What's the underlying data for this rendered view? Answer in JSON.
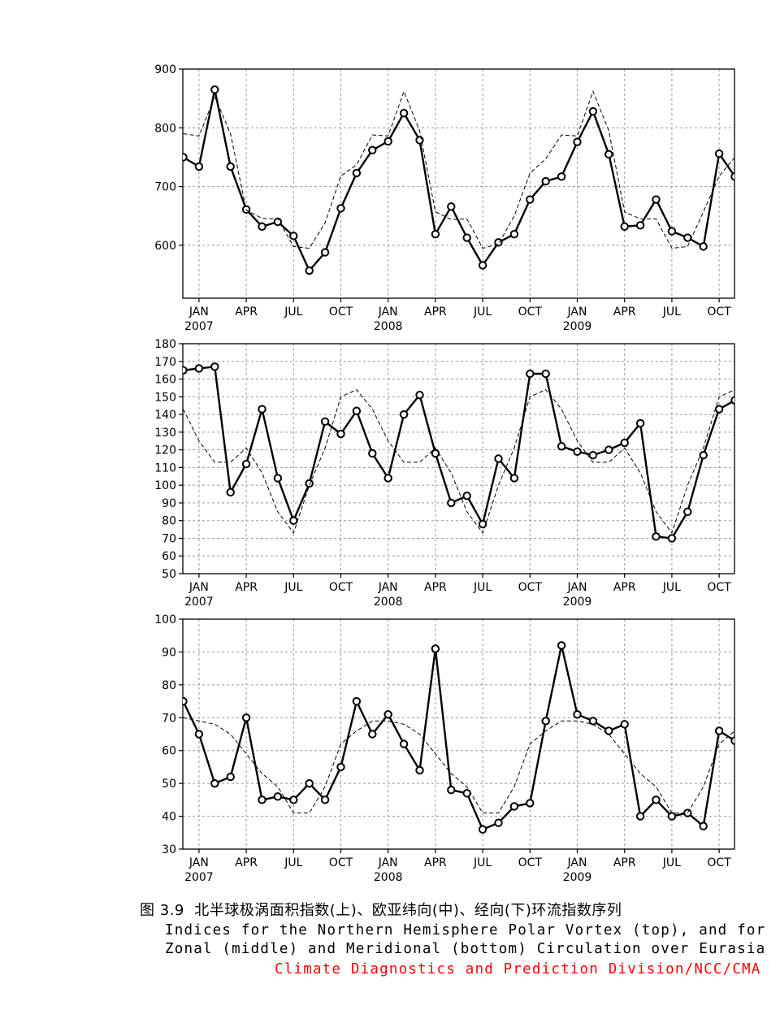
{
  "chart_data": [
    {
      "type": "line",
      "id": "polar-vortex",
      "title": "",
      "x": [
        "2006-12",
        "2007-01",
        "2007-02",
        "2007-03",
        "2007-04",
        "2007-05",
        "2007-06",
        "2007-07",
        "2007-08",
        "2007-09",
        "2007-10",
        "2007-11",
        "2007-12",
        "2008-01",
        "2008-02",
        "2008-03",
        "2008-04",
        "2008-05",
        "2008-06",
        "2008-07",
        "2008-08",
        "2008-09",
        "2008-10",
        "2008-11",
        "2008-12",
        "2009-01",
        "2009-02",
        "2009-03",
        "2009-04",
        "2009-05",
        "2009-06",
        "2009-07",
        "2009-08",
        "2009-09",
        "2009-10",
        "2009-11"
      ],
      "series": [
        {
          "name": "",
          "style": "solid-circles",
          "values": [
            750,
            734,
            865,
            734,
            661,
            632,
            640,
            616,
            557,
            588,
            663,
            723,
            762,
            777,
            825,
            779,
            619,
            666,
            613,
            566,
            605,
            619,
            678,
            709,
            717,
            776,
            828,
            755,
            632,
            634,
            678,
            624,
            613,
            598,
            756,
            717
          ]
        },
        {
          "name": "",
          "style": "dashed",
          "values": [
            790,
            786,
            853,
            790,
            660,
            646,
            645,
            598,
            595,
            638,
            718,
            737,
            788,
            786,
            862,
            795,
            657,
            644,
            645,
            595,
            602,
            650,
            723,
            747,
            788,
            786,
            862,
            795,
            657,
            645,
            645,
            595,
            598,
            657,
            718,
            750
          ]
        }
      ],
      "ylim": [
        510,
        900
      ],
      "yticks": [
        600,
        700,
        800,
        900
      ],
      "xticks": [
        {
          "date": "2007-01",
          "label": "JAN",
          "year": "2007"
        },
        {
          "date": "2007-04",
          "label": "APR",
          "year": ""
        },
        {
          "date": "2007-07",
          "label": "JUL",
          "year": ""
        },
        {
          "date": "2007-10",
          "label": "OCT",
          "year": ""
        },
        {
          "date": "2008-01",
          "label": "JAN",
          "year": "2008"
        },
        {
          "date": "2008-04",
          "label": "APR",
          "year": ""
        },
        {
          "date": "2008-07",
          "label": "JUL",
          "year": ""
        },
        {
          "date": "2008-10",
          "label": "OCT",
          "year": ""
        },
        {
          "date": "2009-01",
          "label": "JAN",
          "year": "2009"
        },
        {
          "date": "2009-04",
          "label": "APR",
          "year": ""
        },
        {
          "date": "2009-07",
          "label": "JUL",
          "year": ""
        },
        {
          "date": "2009-10",
          "label": "OCT",
          "year": ""
        }
      ],
      "grid": true
    },
    {
      "type": "line",
      "id": "zonal",
      "title": "",
      "x": [
        "2006-12",
        "2007-01",
        "2007-02",
        "2007-03",
        "2007-04",
        "2007-05",
        "2007-06",
        "2007-07",
        "2007-08",
        "2007-09",
        "2007-10",
        "2007-11",
        "2007-12",
        "2008-01",
        "2008-02",
        "2008-03",
        "2008-04",
        "2008-05",
        "2008-06",
        "2008-07",
        "2008-08",
        "2008-09",
        "2008-10",
        "2008-11",
        "2008-12",
        "2009-01",
        "2009-02",
        "2009-03",
        "2009-04",
        "2009-05",
        "2009-06",
        "2009-07",
        "2009-08",
        "2009-09",
        "2009-10",
        "2009-11"
      ],
      "series": [
        {
          "name": "",
          "style": "solid-circles",
          "values": [
            165,
            166,
            167,
            96,
            112,
            143,
            104,
            80,
            101,
            136,
            129,
            142,
            118,
            104,
            140,
            151,
            118,
            90,
            94,
            78,
            115,
            104,
            163,
            163,
            122,
            119,
            117,
            120,
            124,
            135,
            71,
            70,
            85,
            117,
            143,
            148
          ]
        },
        {
          "name": "",
          "style": "dashed",
          "values": [
            143,
            125,
            113,
            113,
            121,
            107,
            85,
            73,
            100,
            121,
            150,
            154,
            143,
            125,
            113,
            113,
            121,
            107,
            85,
            73,
            100,
            121,
            150,
            154,
            143,
            125,
            113,
            113,
            121,
            107,
            85,
            73,
            100,
            121,
            150,
            154
          ]
        }
      ],
      "ylim": [
        50,
        180
      ],
      "yticks": [
        50,
        60,
        70,
        80,
        90,
        100,
        110,
        120,
        130,
        140,
        150,
        160,
        170,
        180
      ],
      "xticks": [
        {
          "date": "2007-01",
          "label": "JAN",
          "year": "2007"
        },
        {
          "date": "2007-04",
          "label": "APR",
          "year": ""
        },
        {
          "date": "2007-07",
          "label": "JUL",
          "year": ""
        },
        {
          "date": "2007-10",
          "label": "OCT",
          "year": ""
        },
        {
          "date": "2008-01",
          "label": "JAN",
          "year": "2008"
        },
        {
          "date": "2008-04",
          "label": "APR",
          "year": ""
        },
        {
          "date": "2008-07",
          "label": "JUL",
          "year": ""
        },
        {
          "date": "2008-10",
          "label": "OCT",
          "year": ""
        },
        {
          "date": "2009-01",
          "label": "JAN",
          "year": "2009"
        },
        {
          "date": "2009-04",
          "label": "APR",
          "year": ""
        },
        {
          "date": "2009-07",
          "label": "JUL",
          "year": ""
        },
        {
          "date": "2009-10",
          "label": "OCT",
          "year": ""
        }
      ],
      "grid": true
    },
    {
      "type": "line",
      "id": "meridional",
      "title": "",
      "x": [
        "2006-12",
        "2007-01",
        "2007-02",
        "2007-03",
        "2007-04",
        "2007-05",
        "2007-06",
        "2007-07",
        "2007-08",
        "2007-09",
        "2007-10",
        "2007-11",
        "2007-12",
        "2008-01",
        "2008-02",
        "2008-03",
        "2008-04",
        "2008-05",
        "2008-06",
        "2008-07",
        "2008-08",
        "2008-09",
        "2008-10",
        "2008-11",
        "2008-12",
        "2009-01",
        "2009-02",
        "2009-03",
        "2009-04",
        "2009-05",
        "2009-06",
        "2009-07",
        "2009-08",
        "2009-09",
        "2009-10",
        "2009-11"
      ],
      "series": [
        {
          "name": "",
          "style": "solid-circles",
          "values": [
            75,
            65,
            50,
            52,
            70,
            45,
            46,
            45,
            50,
            45,
            55,
            75,
            65,
            71,
            62,
            54,
            91,
            48,
            47,
            36,
            38,
            43,
            44,
            69,
            92,
            71,
            69,
            66,
            68,
            40,
            45,
            40,
            41,
            37,
            66,
            63
          ]
        },
        {
          "name": "",
          "style": "dashed",
          "values": [
            70,
            69,
            68,
            65,
            59,
            53,
            49,
            41,
            41,
            49,
            62,
            66,
            69,
            69,
            68,
            65,
            59,
            53,
            49,
            41,
            41,
            49,
            62,
            66,
            69,
            69,
            68,
            65,
            59,
            53,
            49,
            41,
            41,
            49,
            62,
            66
          ]
        }
      ],
      "ylim": [
        30,
        100
      ],
      "yticks": [
        30,
        40,
        50,
        60,
        70,
        80,
        90,
        100
      ],
      "xticks": [
        {
          "date": "2007-01",
          "label": "JAN",
          "year": "2007"
        },
        {
          "date": "2007-04",
          "label": "APR",
          "year": ""
        },
        {
          "date": "2007-07",
          "label": "JUL",
          "year": ""
        },
        {
          "date": "2007-10",
          "label": "OCT",
          "year": ""
        },
        {
          "date": "2008-01",
          "label": "JAN",
          "year": "2008"
        },
        {
          "date": "2008-04",
          "label": "APR",
          "year": ""
        },
        {
          "date": "2008-07",
          "label": "JUL",
          "year": ""
        },
        {
          "date": "2008-10",
          "label": "OCT",
          "year": ""
        },
        {
          "date": "2009-01",
          "label": "JAN",
          "year": "2009"
        },
        {
          "date": "2009-04",
          "label": "APR",
          "year": ""
        },
        {
          "date": "2009-07",
          "label": "JUL",
          "year": ""
        },
        {
          "date": "2009-10",
          "label": "OCT",
          "year": ""
        }
      ],
      "grid": true
    }
  ],
  "caption": {
    "chinese": "图 3.9  北半球极涡面积指数(上)、欧亚纬向(中)、经向(下)环流指数序列",
    "english_line1": "Indices for the Northern Hemisphere Polar Vortex (top), and for",
    "english_line2": "Zonal (middle) and Meridional (bottom) Circulation over Eurasia",
    "credit": "Climate Diagnostics and Prediction Division/NCC/CMA"
  },
  "colors": {
    "line": "#000000",
    "grid": "#999999",
    "credit": "#ff0000"
  }
}
